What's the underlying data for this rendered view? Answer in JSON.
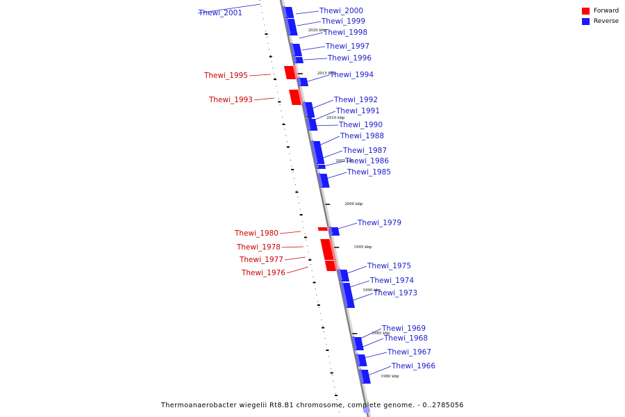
{
  "title": "Thermoanaerobacter wiegelii Rt8.B1 chromosome, complete genome. - 0..2785056",
  "colors": {
    "forward": "#ff0000",
    "reverse": "#1a1aff",
    "forward_label": "#cc0000",
    "reverse_label": "#1a1acc",
    "backbone": "#808080"
  },
  "legend": [
    {
      "label": "Forward",
      "color": "#ff0000"
    },
    {
      "label": "Reverse",
      "color": "#1a1aff"
    }
  ],
  "position_markers": [
    "2020 kbp",
    "2015 kbp",
    "2010 kbp",
    "2005 kbp",
    "2000 kbp",
    "1995 kbp",
    "1990 kbp",
    "1985 kbp",
    "1980 kbp"
  ],
  "genes": [
    {
      "name": "Thewi_2001",
      "strand": "reverse"
    },
    {
      "name": "Thewi_2000",
      "strand": "reverse"
    },
    {
      "name": "Thewi_1999",
      "strand": "reverse"
    },
    {
      "name": "Thewi_1998",
      "strand": "reverse"
    },
    {
      "name": "Thewi_1997",
      "strand": "reverse"
    },
    {
      "name": "Thewi_1996",
      "strand": "reverse"
    },
    {
      "name": "Thewi_1995",
      "strand": "forward"
    },
    {
      "name": "Thewi_1994",
      "strand": "reverse"
    },
    {
      "name": "Thewi_1993",
      "strand": "forward"
    },
    {
      "name": "Thewi_1992",
      "strand": "reverse"
    },
    {
      "name": "Thewi_1991",
      "strand": "reverse"
    },
    {
      "name": "Thewi_1990",
      "strand": "reverse"
    },
    {
      "name": "Thewi_1988",
      "strand": "reverse"
    },
    {
      "name": "Thewi_1987",
      "strand": "reverse"
    },
    {
      "name": "Thewi_1986",
      "strand": "reverse"
    },
    {
      "name": "Thewi_1985",
      "strand": "reverse"
    },
    {
      "name": "Thewi_1980",
      "strand": "forward"
    },
    {
      "name": "Thewi_1979",
      "strand": "reverse"
    },
    {
      "name": "Thewi_1978",
      "strand": "forward"
    },
    {
      "name": "Thewi_1977",
      "strand": "forward"
    },
    {
      "name": "Thewi_1976",
      "strand": "forward"
    },
    {
      "name": "Thewi_1975",
      "strand": "reverse"
    },
    {
      "name": "Thewi_1974",
      "strand": "reverse"
    },
    {
      "name": "Thewi_1973",
      "strand": "reverse"
    },
    {
      "name": "Thewi_1969",
      "strand": "reverse"
    },
    {
      "name": "Thewi_1968",
      "strand": "reverse"
    },
    {
      "name": "Thewi_1967",
      "strand": "reverse"
    },
    {
      "name": "Thewi_1966",
      "strand": "reverse"
    }
  ]
}
